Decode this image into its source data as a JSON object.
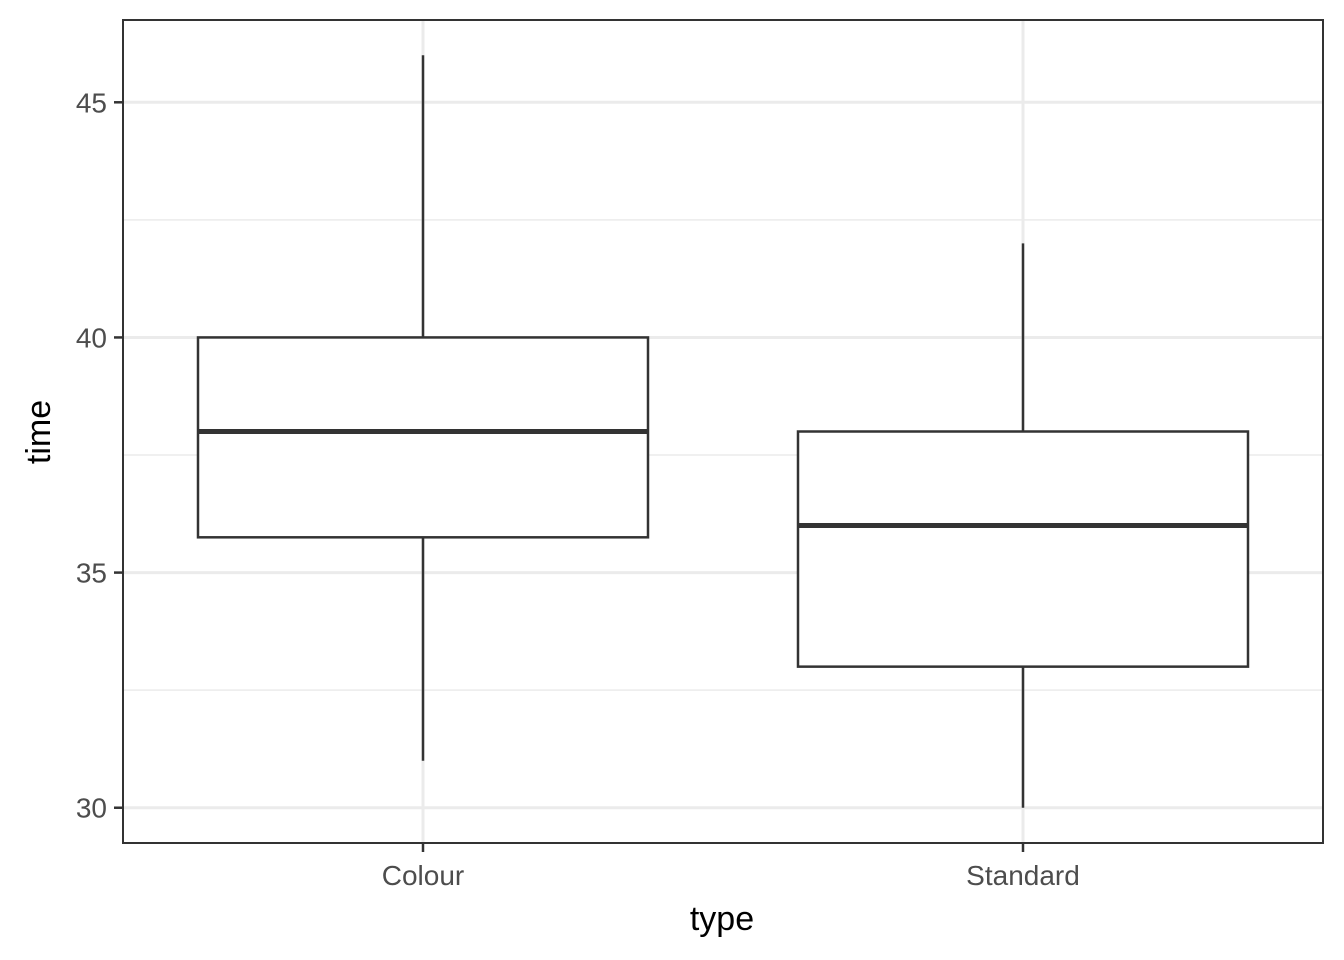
{
  "chart_data": {
    "type": "boxplot",
    "title": "",
    "xlabel": "type",
    "ylabel": "time",
    "ylim": [
      29.25,
      46.75
    ],
    "yticks": [
      30,
      35,
      40,
      45
    ],
    "grid": true,
    "categories": [
      "Colour",
      "Standard"
    ],
    "boxes": [
      {
        "category": "Colour",
        "min": 31,
        "q1": 35.75,
        "median": 38,
        "q3": 40,
        "max": 46
      },
      {
        "category": "Standard",
        "min": 30,
        "q1": 33,
        "median": 36,
        "q3": 38,
        "max": 42
      }
    ],
    "colors": {
      "box_stroke": "#333333",
      "panel_border": "#333333",
      "grid": "#ebebeb",
      "box_fill": "#ffffff"
    }
  }
}
